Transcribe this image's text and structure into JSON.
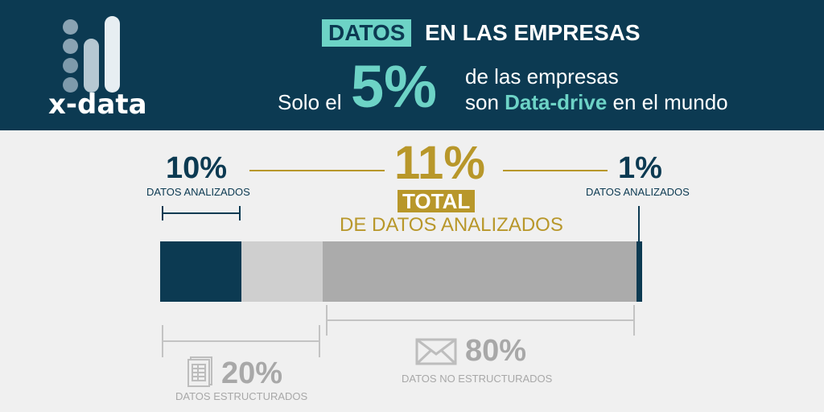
{
  "header": {
    "brand": "x-data",
    "title_highlight": "DATOS",
    "title_rest": "EN LAS EMPRESAS",
    "prefix": "Solo el",
    "big_value": "5%",
    "line1": "de las empresas",
    "line2_pre": "son ",
    "line2_accent": "Data-drive",
    "line2_post": " en el mundo"
  },
  "left_top": {
    "value": "10%",
    "label": "DATOS ANALIZADOS"
  },
  "center": {
    "value": "11%",
    "badge": "TOTAL",
    "label": "DE DATOS ANALIZADOS"
  },
  "right_top": {
    "value": "1%",
    "label": "DATOS ANALIZADOS"
  },
  "left_bottom": {
    "value": "20%",
    "label": "DATOS ESTRUCTURADOS",
    "icon": "document-icon"
  },
  "right_bottom": {
    "value": "80%",
    "label": "DATOS NO ESTRUCTURADOS",
    "icon": "envelope-icon"
  },
  "colors": {
    "navy": "#0c3a52",
    "teal": "#6dd3c6",
    "gold": "#b8972a",
    "light_grey": "#cfcfcf",
    "mid_grey": "#ababab"
  }
}
